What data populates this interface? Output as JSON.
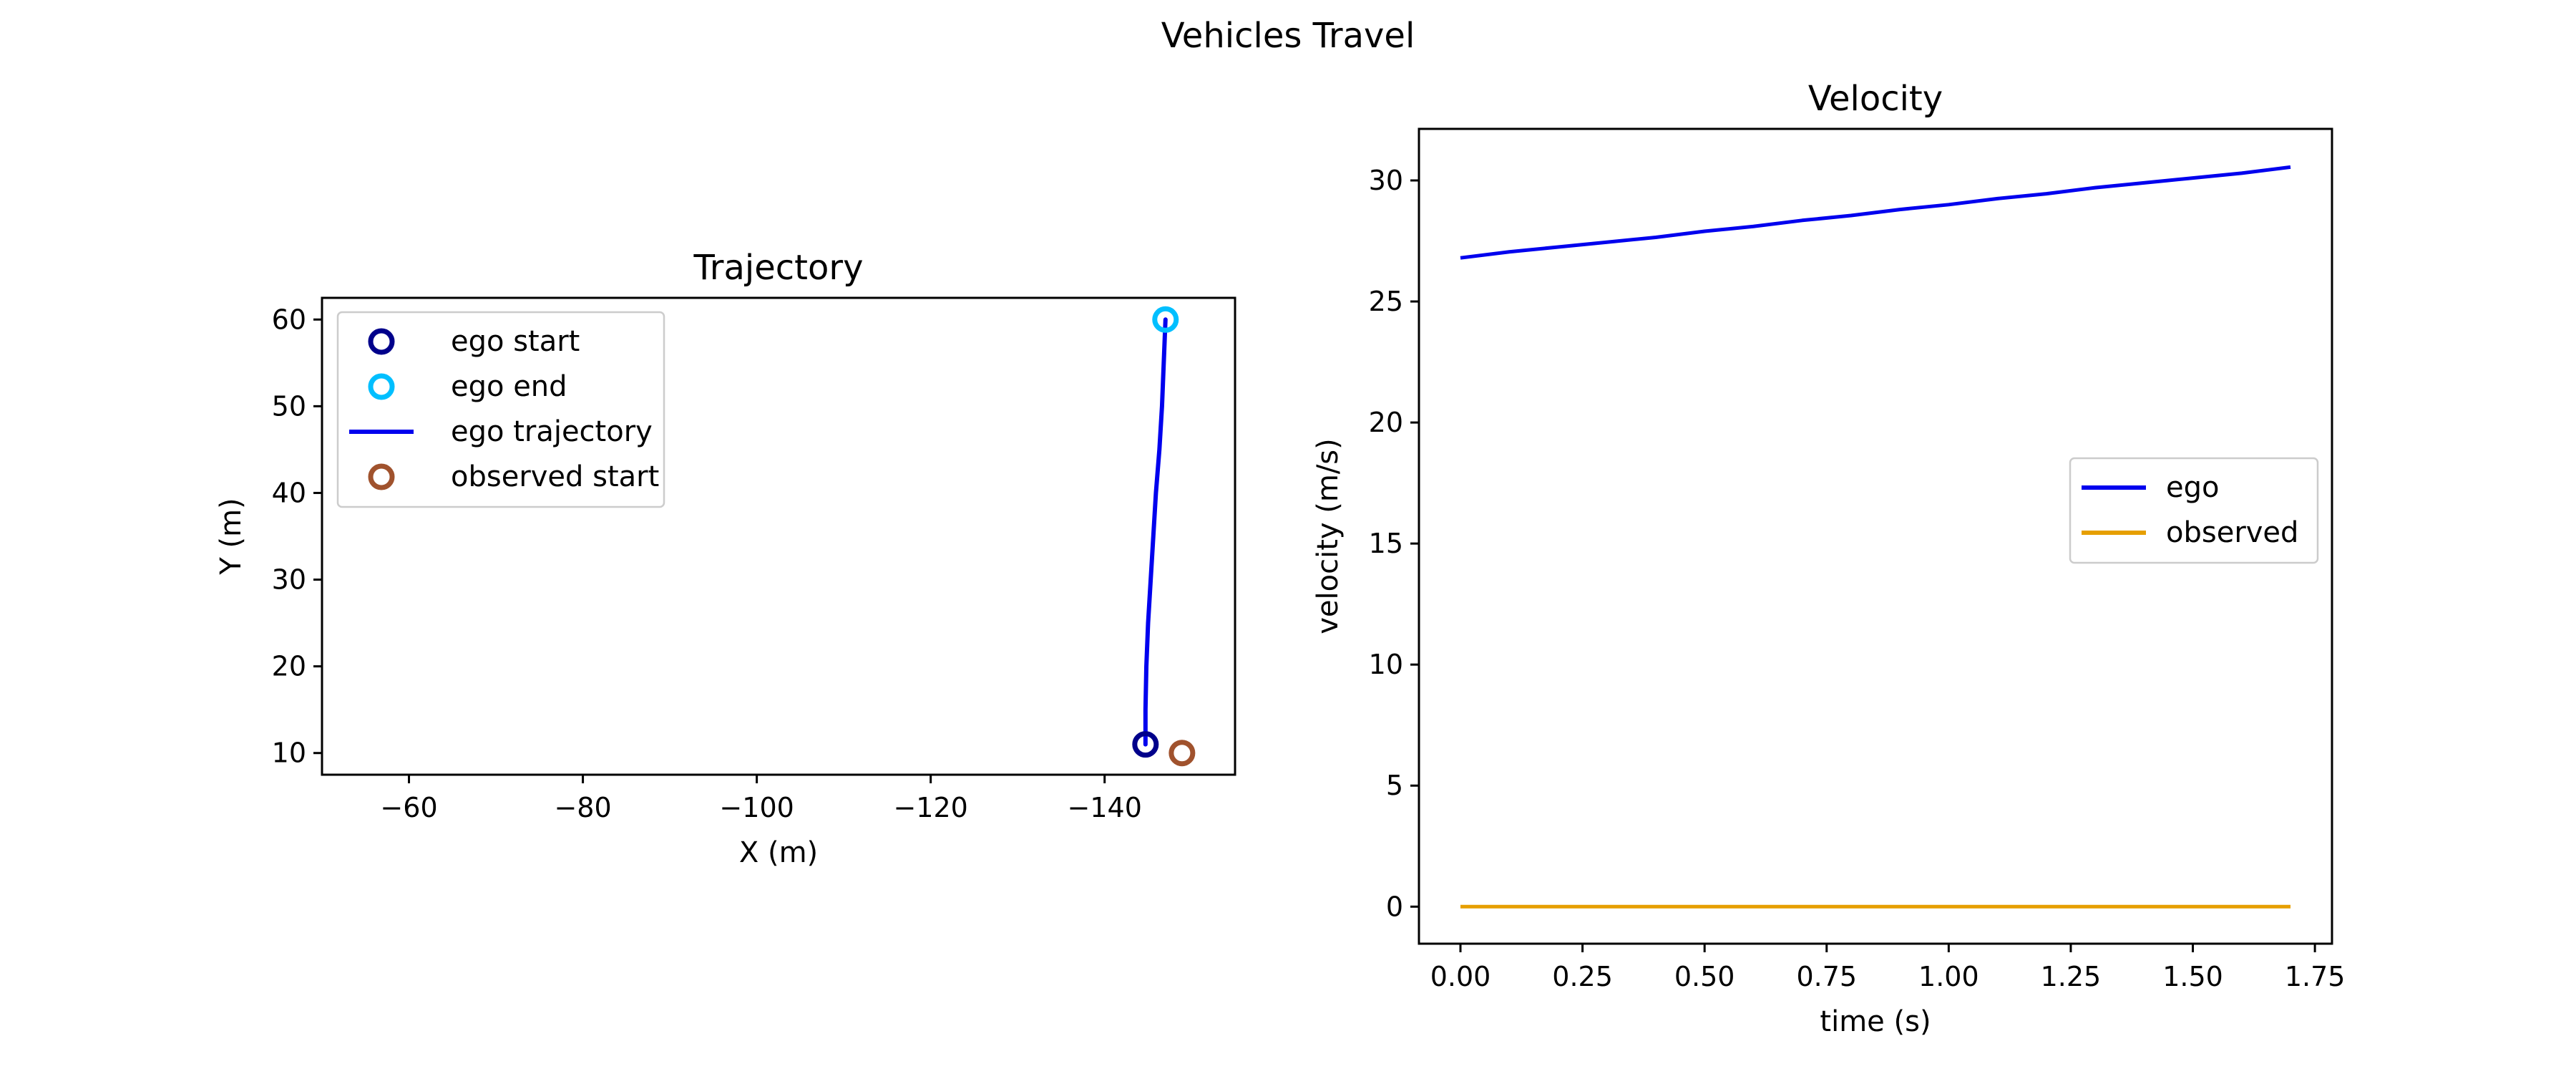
{
  "figure": {
    "title": "Vehicles Travel"
  },
  "chart_data": [
    {
      "type": "line",
      "title": "Trajectory",
      "xlabel": "X (m)",
      "ylabel": "Y (m)",
      "xlim": [
        -50,
        -155
      ],
      "ylim": [
        7.5,
        62.5
      ],
      "xticks": [
        -60,
        -80,
        -100,
        -120,
        -140
      ],
      "yticks": [
        10,
        20,
        30,
        40,
        50,
        60
      ],
      "grid": false,
      "legend_position": "upper-left",
      "colors": {
        "ego_start": "#00008b",
        "ego_end": "#00bfff",
        "ego_trajectory": "#0000ee",
        "observed_start": "#a0522d"
      },
      "series": [
        {
          "name": "ego start",
          "marker": "circle-open",
          "points": [
            {
              "x": -144.7,
              "y": 11.0
            }
          ]
        },
        {
          "name": "ego end",
          "marker": "circle-open",
          "points": [
            {
              "x": -147.0,
              "y": 60.0
            }
          ]
        },
        {
          "name": "ego trajectory",
          "marker": "line",
          "points": [
            {
              "x": -144.7,
              "y": 11.0
            },
            {
              "x": -144.7,
              "y": 15.0
            },
            {
              "x": -144.8,
              "y": 20.0
            },
            {
              "x": -145.0,
              "y": 25.0
            },
            {
              "x": -145.3,
              "y": 30.0
            },
            {
              "x": -145.6,
              "y": 35.0
            },
            {
              "x": -145.9,
              "y": 40.0
            },
            {
              "x": -146.3,
              "y": 45.0
            },
            {
              "x": -146.6,
              "y": 50.0
            },
            {
              "x": -146.8,
              "y": 55.0
            },
            {
              "x": -147.0,
              "y": 60.0
            }
          ]
        },
        {
          "name": "observed start",
          "marker": "circle-open",
          "points": [
            {
              "x": -148.9,
              "y": 10.0
            }
          ]
        }
      ]
    },
    {
      "type": "line",
      "title": "Velocity",
      "xlabel": "time (s)",
      "ylabel": "velocity (m/s)",
      "xlim": [
        -0.085,
        1.785
      ],
      "ylim": [
        -1.53,
        32.13
      ],
      "xticks": [
        "0.00",
        "0.25",
        "0.50",
        "0.75",
        "1.00",
        "1.25",
        "1.50",
        "1.75"
      ],
      "yticks": [
        0,
        5,
        10,
        15,
        20,
        25,
        30
      ],
      "grid": false,
      "legend_position": "center-right",
      "colors": {
        "ego": "#0000ee",
        "observed": "#e69f00"
      },
      "series": [
        {
          "name": "ego",
          "x": [
            0.0,
            0.1,
            0.2,
            0.3,
            0.4,
            0.5,
            0.6,
            0.7,
            0.8,
            0.9,
            1.0,
            1.1,
            1.2,
            1.3,
            1.4,
            1.5,
            1.6,
            1.7
          ],
          "values": [
            26.8,
            27.05,
            27.25,
            27.45,
            27.65,
            27.9,
            28.1,
            28.35,
            28.55,
            28.8,
            29.0,
            29.25,
            29.45,
            29.7,
            29.9,
            30.1,
            30.3,
            30.55
          ]
        },
        {
          "name": "observed",
          "x": [
            0.0,
            1.7
          ],
          "values": [
            0.0,
            0.0
          ]
        }
      ]
    }
  ]
}
